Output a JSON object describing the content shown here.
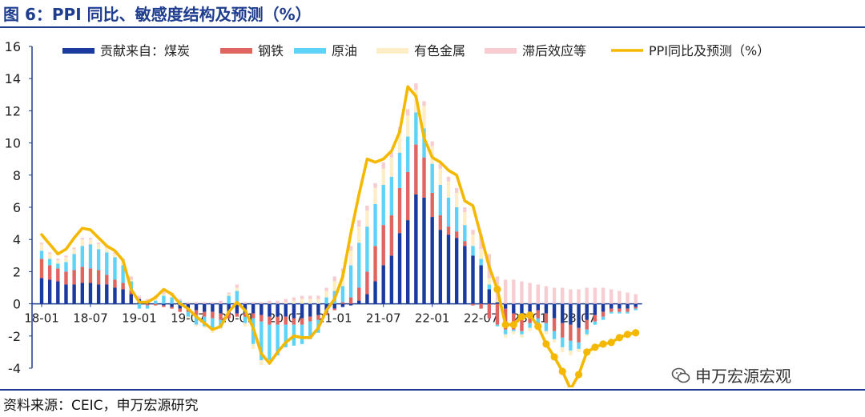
{
  "title": "图 6：PPI 同比、敏感度结构及预测（%）",
  "source": "资料来源：CEIC，申万宏源研究",
  "watermark": "申万宏源宏观",
  "chart_data": {
    "type": "bar",
    "stacked": true,
    "ylim": [
      -4,
      16
    ],
    "yticks": [
      -4,
      -2,
      0,
      2,
      4,
      6,
      8,
      10,
      12,
      14,
      16
    ],
    "xtick_labels": [
      "18-01",
      "18-07",
      "19-01",
      "19-07",
      "20-01",
      "20-07",
      "21-01",
      "21-07",
      "22-01",
      "22-07",
      "23-01",
      "23-07"
    ],
    "start_month": "2018-01",
    "actual_months": 56,
    "legend_position": "top",
    "grid": false,
    "series": [
      {
        "name": "贡献来自：煤炭",
        "color": "#1a3aa0",
        "values": [
          1.6,
          1.5,
          1.4,
          1.2,
          1.2,
          1.3,
          1.3,
          1.2,
          1.2,
          1.0,
          0.9,
          0.6,
          0.3,
          0.1,
          0.0,
          -0.1,
          -0.2,
          -0.3,
          -0.3,
          -0.4,
          -0.5,
          -0.5,
          -0.6,
          -0.6,
          -0.6,
          -0.6,
          -0.6,
          -0.7,
          -0.8,
          -0.8,
          -0.8,
          -0.9,
          -0.9,
          -0.8,
          -0.7,
          -0.5,
          -0.3,
          -0.2,
          -0.1,
          0.2,
          0.6,
          1.4,
          2.4,
          3.0,
          4.4,
          5.2,
          6.8,
          6.6,
          5.4,
          4.6,
          4.3,
          4.1,
          3.6,
          3.0,
          2.4,
          0.9,
          0.1,
          -0.3,
          -0.6,
          -0.8,
          -0.6,
          -0.4,
          -0.6,
          -0.9,
          -1.2,
          -1.3,
          -1.5,
          -1.0,
          -0.7,
          -0.5,
          -0.3,
          -0.3,
          -0.3,
          -0.2
        ]
      },
      {
        "name": "钢铁",
        "color": "#e06460",
        "values": [
          1.2,
          0.9,
          0.8,
          0.8,
          0.9,
          1.0,
          0.9,
          0.9,
          0.6,
          0.5,
          0.4,
          0.2,
          0.0,
          -0.1,
          -0.1,
          -0.1,
          -0.1,
          -0.2,
          -0.2,
          -0.3,
          -0.3,
          -0.4,
          -0.4,
          -0.3,
          -0.2,
          -0.2,
          -0.3,
          -0.4,
          -0.5,
          -0.5,
          -0.5,
          -0.4,
          -0.4,
          -0.3,
          -0.3,
          -0.2,
          -0.1,
          0.1,
          0.4,
          0.8,
          1.4,
          2.2,
          2.5,
          2.5,
          2.8,
          3.0,
          3.1,
          2.5,
          1.5,
          0.9,
          0.5,
          0.4,
          0.3,
          -0.1,
          -0.3,
          -0.9,
          -1.3,
          -1.3,
          -1.0,
          -0.9,
          -0.6,
          -0.5,
          -0.6,
          -0.8,
          -0.9,
          -1.0,
          -0.9,
          -0.6,
          -0.4,
          -0.3,
          -0.2,
          -0.2,
          -0.2,
          -0.1
        ]
      },
      {
        "name": "原油",
        "color": "#5fd3f7",
        "values": [
          0.5,
          0.4,
          0.3,
          0.6,
          1.0,
          1.3,
          1.5,
          1.3,
          1.4,
          1.4,
          1.1,
          0.6,
          -0.3,
          -0.2,
          0.2,
          0.5,
          0.4,
          0.2,
          -0.3,
          -0.6,
          -0.6,
          -0.7,
          -0.5,
          0.5,
          0.8,
          -0.4,
          -1.6,
          -2.4,
          -2.2,
          -1.9,
          -1.4,
          -1.3,
          -1.2,
          -1.1,
          -0.8,
          0.4,
          0.8,
          1.0,
          2.0,
          2.8,
          2.8,
          2.6,
          2.5,
          2.4,
          2.2,
          2.2,
          2.0,
          1.8,
          1.8,
          1.9,
          1.8,
          1.5,
          1.0,
          0.6,
          0.4,
          0.3,
          -0.1,
          -0.3,
          -0.1,
          -0.2,
          -0.3,
          -0.4,
          -0.5,
          -0.5,
          -0.6,
          -0.6,
          -0.4,
          -0.3,
          -0.2,
          -0.2,
          -0.1,
          -0.1,
          -0.1,
          -0.1
        ]
      },
      {
        "name": "有色金属",
        "color": "#fdeec8",
        "values": [
          0.4,
          0.3,
          0.2,
          0.3,
          0.3,
          0.4,
          0.3,
          0.3,
          0.3,
          0.2,
          0.2,
          0.1,
          0.0,
          0.0,
          0.1,
          0.1,
          0.1,
          0.0,
          -0.1,
          -0.1,
          -0.1,
          -0.2,
          -0.1,
          0.1,
          0.2,
          -0.2,
          -0.3,
          -0.3,
          -0.1,
          0.0,
          0.1,
          0.2,
          0.3,
          0.3,
          0.3,
          0.4,
          0.6,
          0.8,
          0.9,
          1.0,
          1.0,
          1.0,
          1.0,
          1.2,
          1.2,
          1.3,
          1.4,
          1.4,
          1.1,
          1.0,
          1.0,
          0.9,
          0.8,
          0.7,
          0.6,
          0.4,
          0.1,
          -0.2,
          -0.2,
          -0.2,
          -0.2,
          -0.2,
          -0.2,
          -0.2,
          -0.3,
          -0.3,
          -0.2,
          -0.1,
          0.0,
          0.0,
          0.0,
          0.0,
          0.0,
          0.0
        ]
      },
      {
        "name": "滞后效应等",
        "color": "#f7cdd2",
        "values": [
          0.1,
          0.1,
          0.1,
          0.1,
          0.1,
          0.1,
          0.1,
          0.1,
          0.1,
          0.1,
          0.2,
          0.2,
          0.2,
          0.2,
          0.2,
          0.2,
          0.2,
          0.1,
          0.1,
          0.1,
          0.1,
          0.1,
          0.2,
          0.1,
          0.2,
          0.1,
          0.1,
          0.1,
          0.2,
          0.2,
          0.2,
          0.2,
          0.2,
          0.2,
          0.2,
          0.2,
          0.3,
          0.3,
          0.3,
          0.4,
          0.3,
          0.3,
          0.4,
          0.3,
          0.4,
          0.4,
          0.4,
          0.3,
          0.3,
          0.3,
          0.3,
          0.3,
          0.3,
          0.3,
          0.9,
          1.5,
          1.5,
          1.5,
          1.5,
          1.4,
          1.3,
          1.2,
          1.1,
          1.0,
          1.0,
          0.9,
          0.9,
          1.0,
          1.0,
          1.0,
          0.9,
          0.8,
          0.7,
          0.6
        ]
      },
      {
        "name": "PPI同比及预测（%）",
        "color": "#f5b800",
        "type": "line",
        "values": [
          4.3,
          3.7,
          3.1,
          3.4,
          4.1,
          4.7,
          4.6,
          4.1,
          3.6,
          3.3,
          2.7,
          0.9,
          0.1,
          0.1,
          0.4,
          0.9,
          0.6,
          0.0,
          -0.3,
          -0.8,
          -1.2,
          -1.6,
          -1.4,
          -0.5,
          0.1,
          -0.4,
          -1.5,
          -3.1,
          -3.7,
          -3.0,
          -2.4,
          -2.0,
          -2.1,
          -2.1,
          -1.5,
          -0.4,
          0.3,
          1.7,
          4.4,
          6.8,
          9.0,
          8.8,
          9.0,
          9.5,
          10.7,
          13.5,
          12.9,
          10.3,
          9.1,
          8.8,
          8.3,
          8.0,
          6.4,
          6.1,
          4.2,
          2.3,
          0.9,
          -1.3,
          -1.3,
          -0.8,
          -0.7,
          -1.4,
          -2.5,
          -3.3,
          -4.2,
          -5.3,
          -4.4,
          -3.0,
          -2.7,
          -2.5,
          -2.4,
          -2.1,
          -1.9,
          -1.8
        ]
      }
    ]
  }
}
